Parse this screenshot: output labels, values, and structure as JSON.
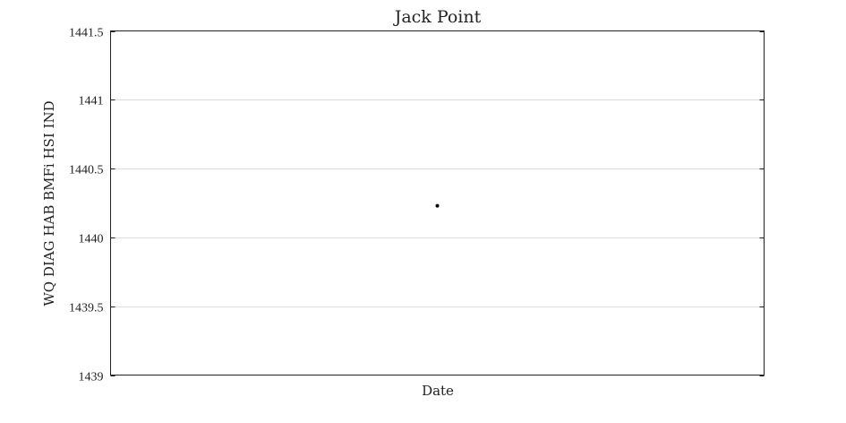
{
  "chart_data": {
    "type": "scatter",
    "title": "Jack Point",
    "xlabel": "Date",
    "ylabel": "WQ DIAG HAB BMFi HSI IND",
    "ylim": [
      1439,
      1441.5
    ],
    "yticks": [
      1439,
      1439.5,
      1440,
      1440.5,
      1441,
      1441.5
    ],
    "ytick_labels": [
      "1439",
      "1439.5",
      "1440",
      "1440.5",
      "1441",
      "1441.5"
    ],
    "xlim": [
      0,
      1
    ],
    "xtick_labels": [],
    "grid": "horizontal",
    "legend": "none",
    "series": [
      {
        "x": [
          0.5
        ],
        "values": [
          1440.23
        ],
        "color": "#000000"
      }
    ]
  }
}
